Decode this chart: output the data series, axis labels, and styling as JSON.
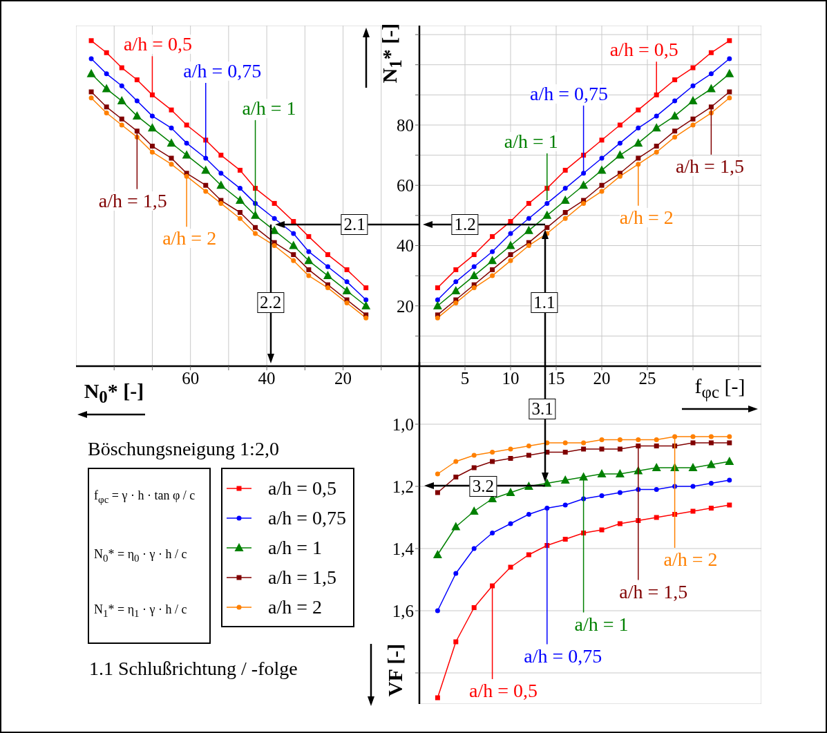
{
  "chart_data": [
    {
      "type": "line",
      "xlabel": "N$_{0}$* [-]",
      "x": [
        14,
        19,
        24,
        29,
        33,
        38,
        43,
        47,
        52,
        56,
        61,
        65,
        70,
        74,
        78,
        82,
        86
      ],
      "xlim": [
        90,
        0
      ],
      "xticks": [
        {
          "value": 10,
          "label": null
        },
        20,
        {
          "value": 30,
          "label": null
        },
        40,
        {
          "value": 50,
          "label": null
        },
        60,
        {
          "value": 70,
          "label": null
        },
        {
          "value": 80,
          "label": null
        }
      ],
      "ylim": [
        0,
        113
      ],
      "yticks": [
        10,
        20,
        30,
        40,
        50,
        60,
        70,
        80,
        90,
        100,
        110
      ],
      "tick_labels": "x",
      "grid": true,
      "series": [
        {
          "color": "#ff0000",
          "marker": "square",
          "values": [
            26,
            32,
            37,
            43,
            48,
            54,
            59,
            65,
            70,
            75,
            80,
            85,
            90,
            95,
            99,
            104,
            108
          ]
        },
        {
          "color": "#0000ff",
          "marker": "circle",
          "values": [
            22,
            28,
            33,
            38,
            44,
            49,
            54,
            59,
            64,
            69,
            74,
            79,
            83,
            88,
            93,
            97,
            102
          ]
        },
        {
          "color": "#008000",
          "marker": "triangle",
          "values": [
            20,
            25,
            30,
            35,
            40,
            45,
            50,
            55,
            60,
            65,
            70,
            74,
            79,
            83,
            88,
            92,
            97
          ]
        },
        {
          "color": "#800000",
          "marker": "square",
          "values": [
            17,
            22,
            27,
            32,
            37,
            41,
            46,
            51,
            55,
            60,
            64,
            69,
            73,
            78,
            82,
            86,
            91
          ]
        },
        {
          "color": "#ff8000",
          "marker": "circle",
          "values": [
            16,
            21,
            26,
            30,
            35,
            40,
            44,
            49,
            54,
            58,
            63,
            67,
            71,
            76,
            80,
            84,
            89
          ]
        }
      ],
      "annotations": [
        {
          "text": "2.1",
          "x": 17,
          "y": 47
        },
        {
          "text": "2.2",
          "x": 39,
          "y": 21
        },
        {
          "text": "a/h = 0,5",
          "x": 70,
          "y": 90
        },
        {
          "text": "a/h = 0,75",
          "x": 56,
          "y": 69
        },
        {
          "text": "a/h = 1",
          "x": 43,
          "y": 50
        },
        {
          "text": "a/h = 1,5",
          "x": 74,
          "y": 78
        },
        {
          "text": "a/h = 2",
          "x": 61,
          "y": 63
        }
      ]
    },
    {
      "type": "line",
      "xlabel": "f$_{φc}$ [-]",
      "ylabel": "N$_{1}$* [-]",
      "x": [
        2,
        4,
        6,
        8,
        10,
        12,
        14,
        16,
        18,
        20,
        22,
        24,
        26,
        28,
        30,
        32,
        34
      ],
      "xlim": [
        0,
        37.5
      ],
      "xticks": [
        5,
        10,
        15,
        20,
        25,
        {
          "value": 30,
          "label": null
        },
        {
          "value": 35,
          "label": null
        }
      ],
      "ylim": [
        0,
        113
      ],
      "yticks": [
        {
          "value": 10,
          "label": null
        },
        20,
        {
          "value": 30,
          "label": null
        },
        40,
        {
          "value": 50,
          "label": null
        },
        60,
        {
          "value": 70,
          "label": null
        },
        80,
        {
          "value": 90,
          "label": null
        },
        {
          "value": 100,
          "label": null
        },
        {
          "value": 110,
          "label": null
        }
      ],
      "grid": true,
      "series": [
        {
          "color": "#ff0000",
          "marker": "square",
          "values": [
            26,
            32,
            37,
            43,
            48,
            54,
            59,
            65,
            70,
            75,
            80,
            85,
            90,
            95,
            99,
            104,
            108
          ]
        },
        {
          "color": "#0000ff",
          "marker": "circle",
          "values": [
            22,
            28,
            33,
            38,
            44,
            49,
            54,
            59,
            64,
            69,
            74,
            79,
            83,
            88,
            93,
            97,
            102
          ]
        },
        {
          "color": "#008000",
          "marker": "triangle",
          "values": [
            20,
            25,
            30,
            35,
            40,
            45,
            50,
            55,
            60,
            65,
            70,
            74,
            79,
            83,
            88,
            92,
            97
          ]
        },
        {
          "color": "#800000",
          "marker": "square",
          "values": [
            17,
            22,
            27,
            32,
            37,
            41,
            46,
            51,
            55,
            60,
            64,
            69,
            73,
            78,
            82,
            86,
            91
          ]
        },
        {
          "color": "#ff8000",
          "marker": "circle",
          "values": [
            16,
            21,
            26,
            30,
            35,
            40,
            44,
            49,
            54,
            58,
            63,
            67,
            71,
            76,
            80,
            84,
            89
          ]
        }
      ],
      "annotations": [
        {
          "text": "1.1",
          "x": 13.7,
          "y": 21
        },
        {
          "text": "1.2",
          "x": 5,
          "y": 47
        },
        {
          "text": "a/h = 0,5",
          "x": 26,
          "y": 90
        },
        {
          "text": "a/h = 0,75",
          "x": 18,
          "y": 64
        },
        {
          "text": "a/h = 1",
          "x": 14,
          "y": 55
        },
        {
          "text": "a/h = 1,5",
          "x": 32,
          "y": 86
        },
        {
          "text": "a/h = 2",
          "x": 24,
          "y": 67
        }
      ]
    },
    {
      "type": "line",
      "ylabel": "VF [-]",
      "x": [
        2,
        4,
        6,
        8,
        10,
        12,
        14,
        16,
        18,
        20,
        22,
        24,
        26,
        28,
        30,
        32,
        34
      ],
      "xlim": [
        0,
        37.5
      ],
      "xticks": [
        5,
        10,
        15,
        20,
        25,
        30,
        35
      ],
      "ylim": [
        1.9,
        0.8
      ],
      "yticks": [
        {
          "value": 1.0,
          "label": "1,0"
        },
        {
          "value": 1.2,
          "label": "1,2"
        },
        {
          "value": 1.4,
          "label": "1,4"
        },
        {
          "value": 1.6,
          "label": "1,6"
        },
        {
          "value": 1.8,
          "label": null
        }
      ],
      "tick_labels": "y",
      "grid": true,
      "legend": "left",
      "series": [
        {
          "name": "a/h = 0,5",
          "color": "#ff0000",
          "marker": "square",
          "values": [
            1.88,
            1.7,
            1.59,
            1.52,
            1.46,
            1.42,
            1.39,
            1.37,
            1.35,
            1.34,
            1.32,
            1.31,
            1.3,
            1.29,
            1.28,
            1.27,
            1.26
          ]
        },
        {
          "name": "a/h = 0,75",
          "color": "#0000ff",
          "marker": "circle",
          "values": [
            1.6,
            1.48,
            1.4,
            1.35,
            1.32,
            1.29,
            1.27,
            1.26,
            1.24,
            1.23,
            1.22,
            1.21,
            1.21,
            1.2,
            1.2,
            1.19,
            1.18
          ]
        },
        {
          "name": "a/h = 1",
          "color": "#008000",
          "marker": "triangle",
          "values": [
            1.42,
            1.33,
            1.28,
            1.24,
            1.22,
            1.2,
            1.19,
            1.18,
            1.17,
            1.16,
            1.16,
            1.15,
            1.14,
            1.14,
            1.14,
            1.13,
            1.12
          ]
        },
        {
          "name": "a/h = 1,5",
          "color": "#800000",
          "marker": "square",
          "values": [
            1.22,
            1.17,
            1.14,
            1.12,
            1.11,
            1.1,
            1.09,
            1.09,
            1.08,
            1.08,
            1.08,
            1.07,
            1.07,
            1.07,
            1.06,
            1.06,
            1.06
          ]
        },
        {
          "name": "a/h = 2",
          "color": "#ff8000",
          "marker": "circle",
          "values": [
            1.16,
            1.12,
            1.1,
            1.09,
            1.08,
            1.07,
            1.06,
            1.06,
            1.06,
            1.05,
            1.05,
            1.05,
            1.05,
            1.04,
            1.04,
            1.04,
            1.04
          ]
        }
      ],
      "annotations": [
        "Böschungsneigung 1:2,0",
        "f$_{φc}$ = γ · h · tan φ / c",
        "N$_{0}$* = η$_{0}$ · γ · h / c",
        "N$_{1}$* = η$_{1}$ · γ · h / c",
        "1.1 Schlußrichtung / -folge",
        {
          "text": "3.1",
          "x": 13.5,
          "y": 0.95
        },
        {
          "text": "3.2",
          "x": 7,
          "y": 1.2
        },
        {
          "text": "a/h = 0,5",
          "x": 8,
          "y": 1.52
        },
        {
          "text": "a/h = 0,75",
          "x": 14,
          "y": 1.27
        },
        {
          "text": "a/h = 1",
          "x": 18,
          "y": 1.17
        },
        {
          "text": "a/h = 1,5",
          "x": 24,
          "y": 1.07
        },
        {
          "text": "a/h = 2",
          "x": 28,
          "y": 1.04
        }
      ]
    }
  ]
}
